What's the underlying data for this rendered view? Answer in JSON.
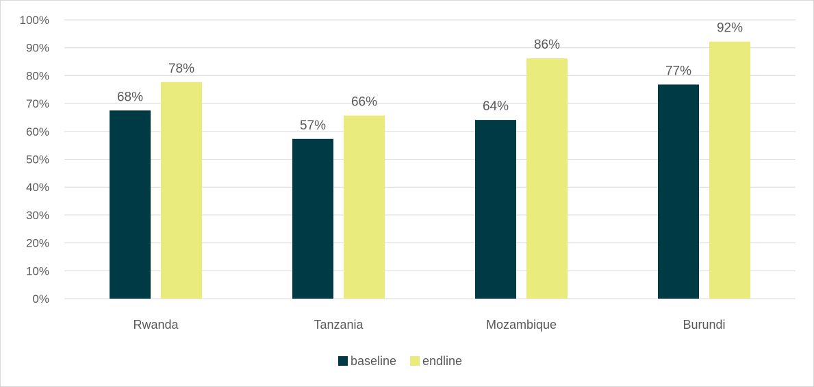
{
  "chart_data": {
    "type": "bar",
    "categories": [
      "Rwanda",
      "Tanzania",
      "Mozambique",
      "Burundi"
    ],
    "series": [
      {
        "name": "baseline",
        "values": [
          67.5,
          57.3,
          64.1,
          76.8
        ],
        "labels": [
          "68%",
          "57%",
          "64%",
          "77%"
        ]
      },
      {
        "name": "endline",
        "values": [
          77.7,
          65.7,
          86.2,
          92.2
        ],
        "labels": [
          "78%",
          "66%",
          "86%",
          "92%"
        ]
      }
    ],
    "title": "",
    "xlabel": "",
    "ylabel": "",
    "ylim": [
      0,
      100
    ],
    "yticks": [
      "0%",
      "10%",
      "20%",
      "30%",
      "40%",
      "50%",
      "60%",
      "70%",
      "80%",
      "90%",
      "100%"
    ],
    "grid": true,
    "legend_position": "bottom",
    "colors": {
      "baseline": "#003a44",
      "endline": "#e9ec7c",
      "grid": "#d9d9d9",
      "text": "#595959"
    }
  }
}
